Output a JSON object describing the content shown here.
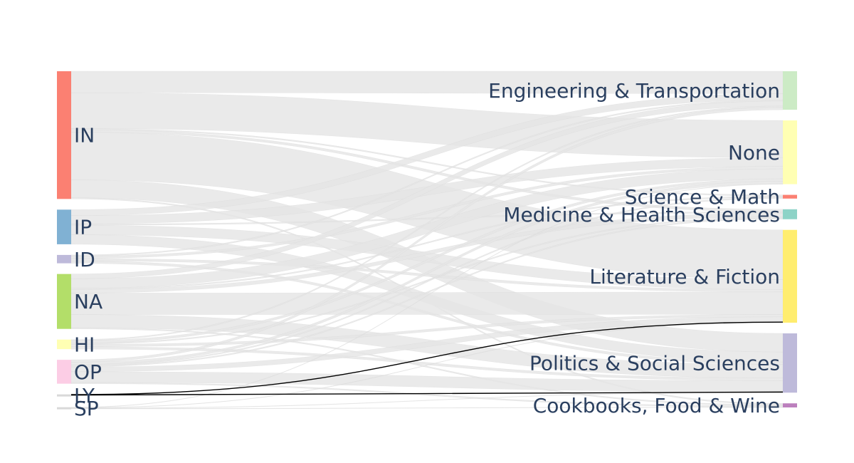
{
  "chart_data": {
    "type": "sankey",
    "link_color": "#e5e5e5",
    "highlight_color": "#000000",
    "sources": [
      {
        "id": "IN",
        "label": "IN",
        "color": "#fb8072"
      },
      {
        "id": "IP",
        "label": "IP",
        "color": "#80b1d3"
      },
      {
        "id": "ID",
        "label": "ID",
        "color": "#bebada"
      },
      {
        "id": "NA",
        "label": "NA",
        "color": "#b3de69"
      },
      {
        "id": "HI",
        "label": "HI",
        "color": "#ffffb3"
      },
      {
        "id": "OP",
        "label": "OP",
        "color": "#fccde5"
      },
      {
        "id": "LY",
        "label": "LY",
        "color": "#d9d9d9"
      },
      {
        "id": "SP",
        "label": "SP",
        "color": "#d9d9d9"
      }
    ],
    "targets": [
      {
        "id": "ENG",
        "label": "Engineering & Transportation",
        "color": "#ccebc5"
      },
      {
        "id": "NONE",
        "label": "None",
        "color": "#ffffb3"
      },
      {
        "id": "SCI",
        "label": "Science & Math",
        "color": "#fb8072"
      },
      {
        "id": "MED",
        "label": "Medicine & Health Sciences",
        "color": "#8dd3c7"
      },
      {
        "id": "LIT",
        "label": "Literature & Fiction",
        "color": "#ffed6f"
      },
      {
        "id": "POL",
        "label": "Politics & Social Sciences",
        "color": "#bebada"
      },
      {
        "id": "COOK",
        "label": "Cookbooks, Food & Wine",
        "color": "#bc80bd"
      }
    ],
    "links": [
      {
        "source": "IN",
        "target": "ENG",
        "value": 18
      },
      {
        "source": "IN",
        "target": "NONE",
        "value": 30
      },
      {
        "source": "IN",
        "target": "SCI",
        "value": 1
      },
      {
        "source": "IN",
        "target": "MED",
        "value": 2
      },
      {
        "source": "IN",
        "target": "LIT",
        "value": 40
      },
      {
        "source": "IN",
        "target": "POL",
        "value": 15
      },
      {
        "source": "IN",
        "target": "COOK",
        "value": 1
      },
      {
        "source": "IP",
        "target": "ENG",
        "value": 5
      },
      {
        "source": "IP",
        "target": "NONE",
        "value": 7
      },
      {
        "source": "IP",
        "target": "MED",
        "value": 1
      },
      {
        "source": "IP",
        "target": "LIT",
        "value": 8
      },
      {
        "source": "IP",
        "target": "POL",
        "value": 8
      },
      {
        "source": "ID",
        "target": "ENG",
        "value": 1
      },
      {
        "source": "ID",
        "target": "NONE",
        "value": 2
      },
      {
        "source": "ID",
        "target": "LIT",
        "value": 2
      },
      {
        "source": "ID",
        "target": "POL",
        "value": 2
      },
      {
        "source": "NA",
        "target": "ENG",
        "value": 4
      },
      {
        "source": "NA",
        "target": "NONE",
        "value": 8
      },
      {
        "source": "NA",
        "target": "SCI",
        "value": 1
      },
      {
        "source": "NA",
        "target": "MED",
        "value": 3
      },
      {
        "source": "NA",
        "target": "LIT",
        "value": 18
      },
      {
        "source": "NA",
        "target": "POL",
        "value": 11
      },
      {
        "source": "NA",
        "target": "COOK",
        "value": 1
      },
      {
        "source": "HI",
        "target": "ENG",
        "value": 1
      },
      {
        "source": "HI",
        "target": "NONE",
        "value": 2
      },
      {
        "source": "HI",
        "target": "MED",
        "value": 1
      },
      {
        "source": "HI",
        "target": "LIT",
        "value": 2
      },
      {
        "source": "HI",
        "target": "POL",
        "value": 2
      },
      {
        "source": "OP",
        "target": "ENG",
        "value": 2
      },
      {
        "source": "OP",
        "target": "NONE",
        "value": 2
      },
      {
        "source": "OP",
        "target": "SCI",
        "value": 1
      },
      {
        "source": "OP",
        "target": "MED",
        "value": 1
      },
      {
        "source": "OP",
        "target": "LIT",
        "value": 4
      },
      {
        "source": "OP",
        "target": "POL",
        "value": 9
      },
      {
        "source": "OP",
        "target": "COOK",
        "value": 1
      },
      {
        "source": "LY",
        "target": "LIT",
        "value": 0.4,
        "highlight": true
      },
      {
        "source": "LY",
        "target": "POL",
        "value": 0.4,
        "highlight": true
      },
      {
        "source": "SP",
        "target": "NONE",
        "value": 0.3
      },
      {
        "source": "SP",
        "target": "LIT",
        "value": 0.3
      },
      {
        "source": "SP",
        "target": "POL",
        "value": 0.3
      },
      {
        "source": "SP",
        "target": "COOK",
        "value": 0.3
      }
    ]
  }
}
